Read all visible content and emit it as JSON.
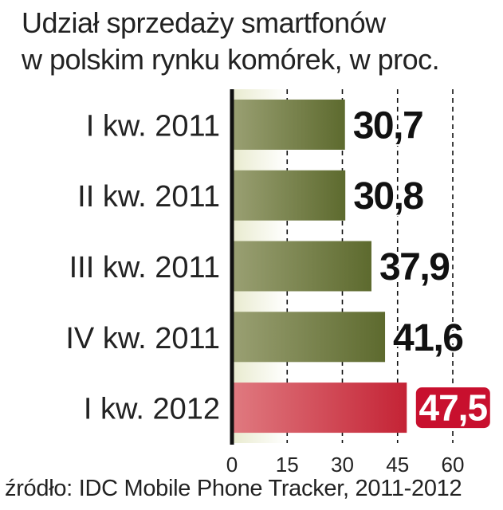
{
  "chart_data": {
    "type": "bar",
    "orientation": "horizontal",
    "title_lines": [
      "Udział sprzedaży smartfonów",
      "w polskim rynku komórek, w proc."
    ],
    "categories": [
      "I kw. 2011",
      "II kw. 2011",
      "III kw. 2011",
      "IV kw. 2011",
      "I kw. 2012"
    ],
    "values": [
      30.7,
      30.8,
      37.9,
      41.6,
      47.5
    ],
    "value_labels": [
      "30,7",
      "30,8",
      "37,9",
      "41,6",
      "47,5"
    ],
    "highlight_index": 4,
    "xlim": [
      0,
      60
    ],
    "xticks": [
      0,
      15,
      30,
      45,
      60
    ],
    "grid": "dashed vertical",
    "colors": {
      "bar_dark": "#5d6a2e",
      "bar_light": "#9aa073",
      "highlight_dark": "#c42335",
      "highlight_light": "#e07a80",
      "highlight_label_bg": "#c8102e",
      "plot_bg_light": "#e9ebcf",
      "text": "#222222"
    },
    "source": "źródło: IDC Mobile Phone Tracker, 2011-2012"
  }
}
